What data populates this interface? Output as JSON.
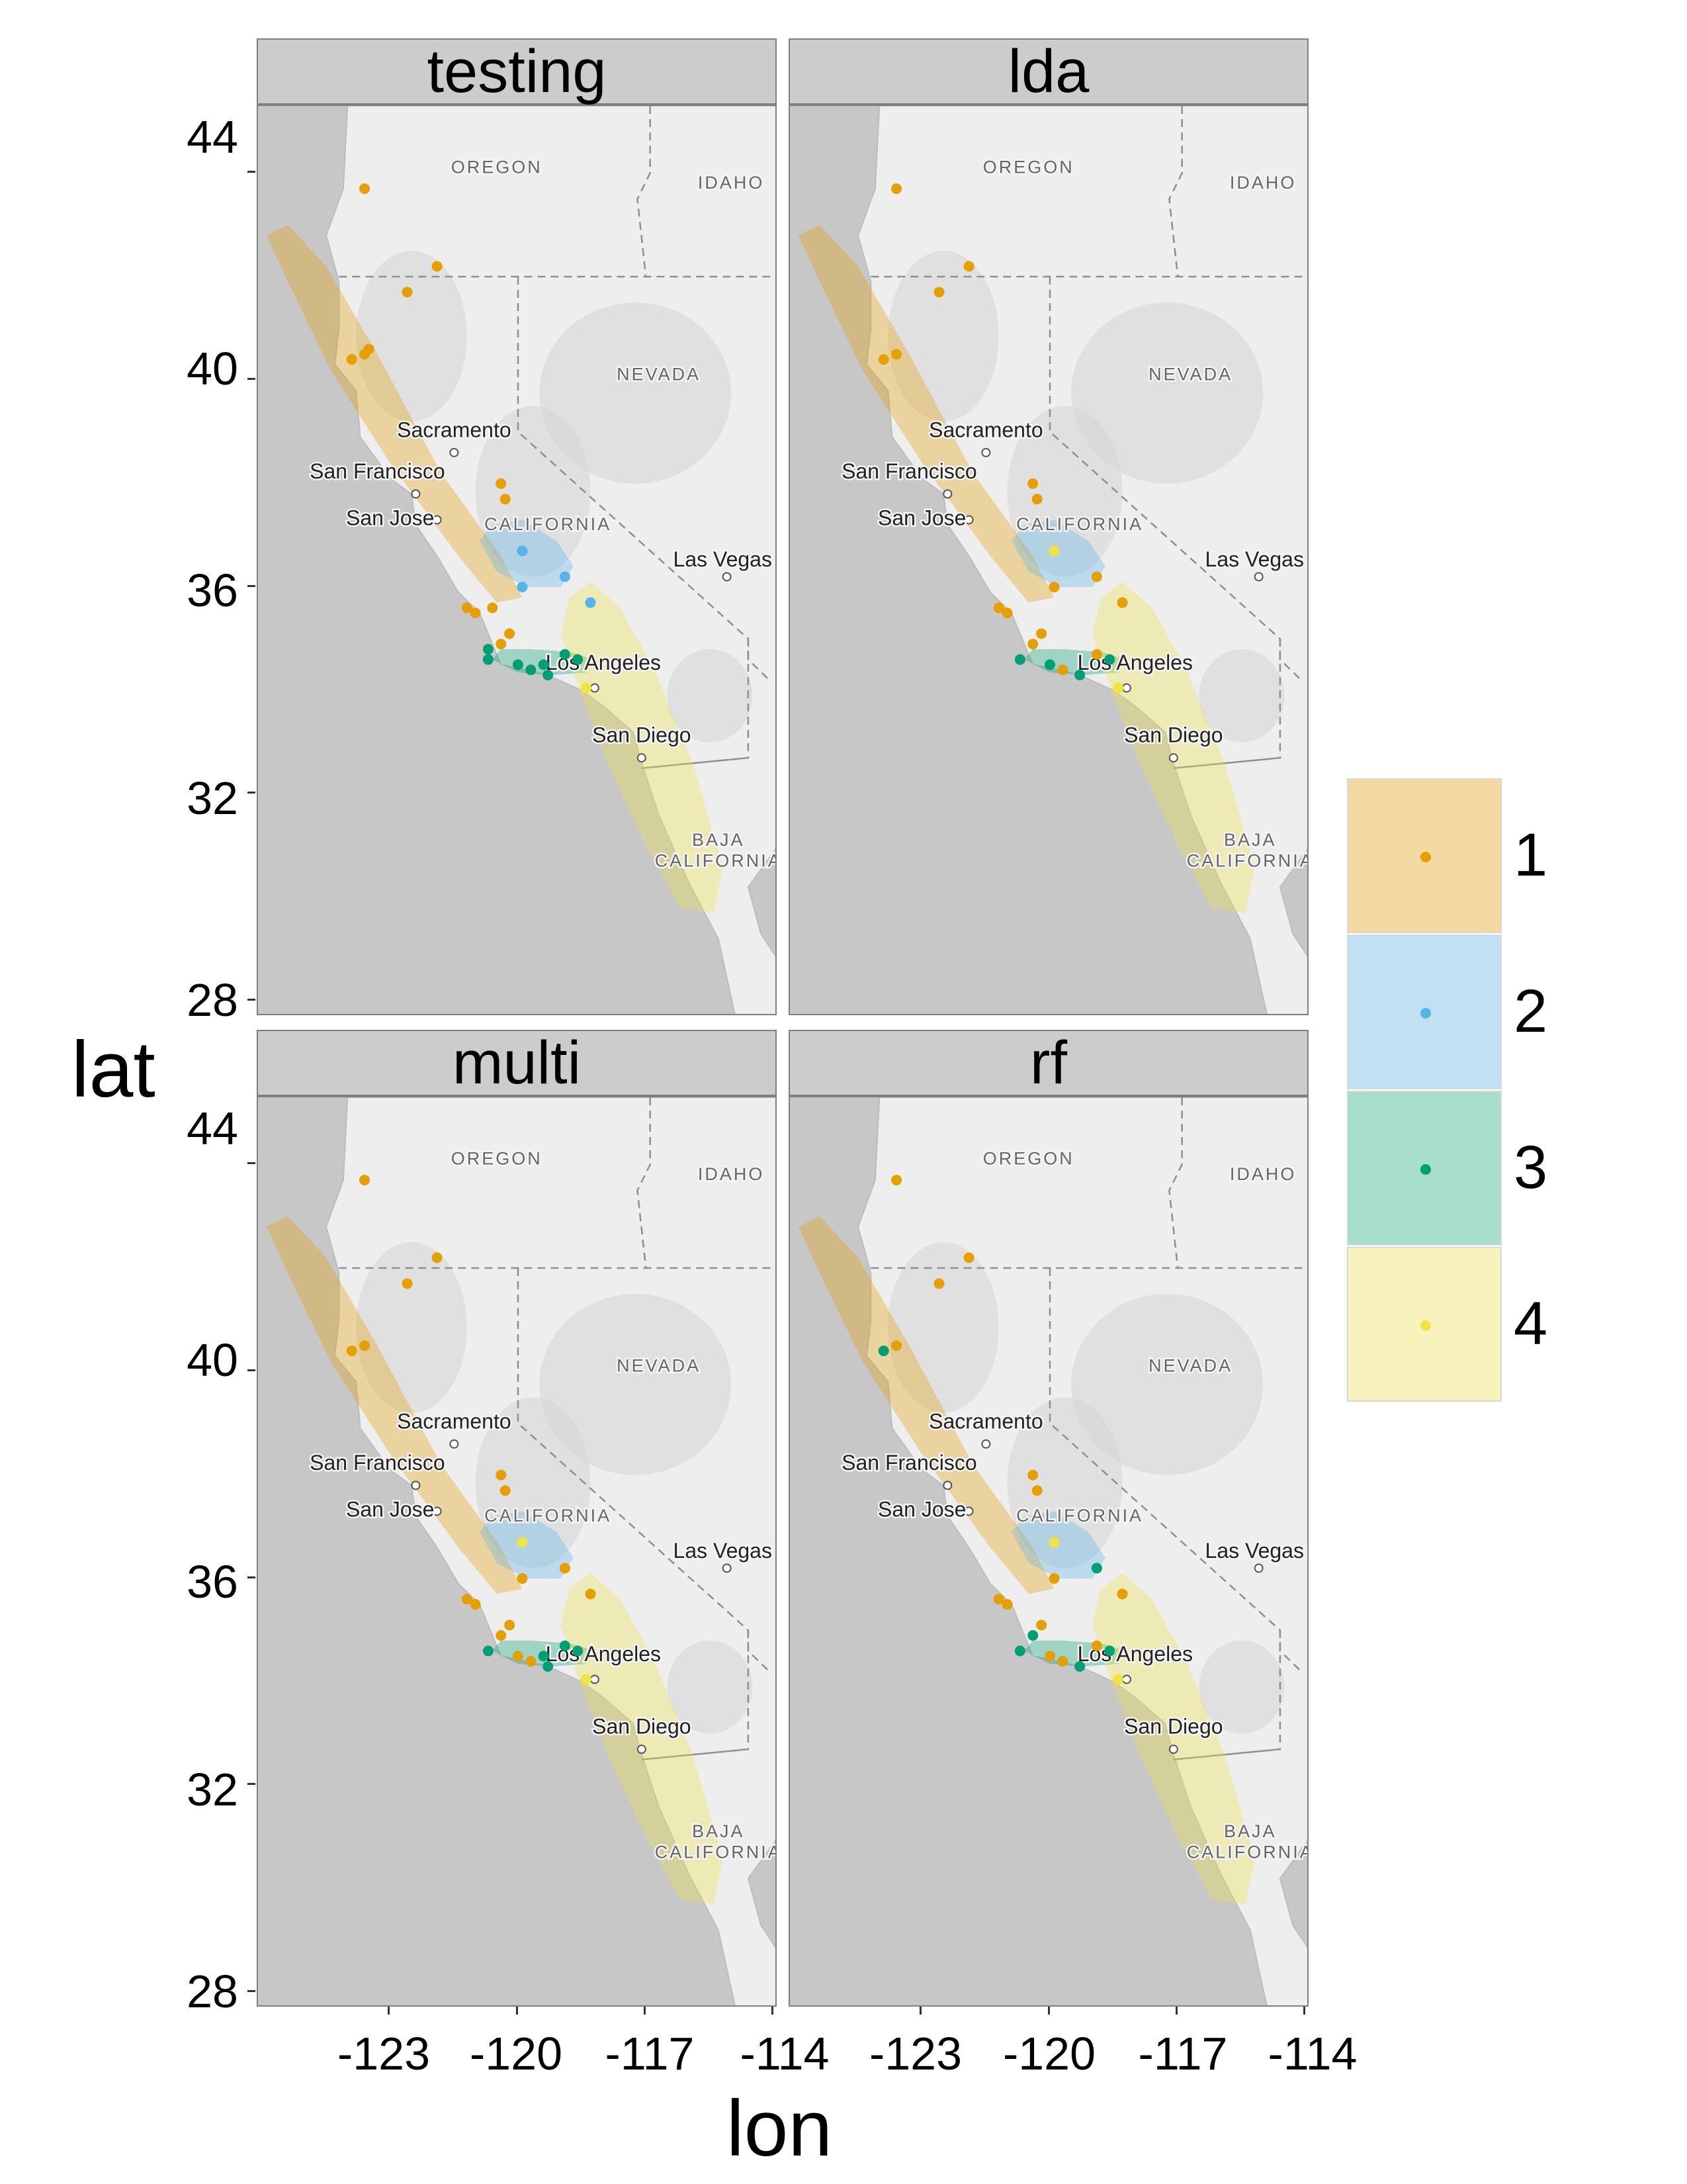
{
  "axes": {
    "xlabel": "lon",
    "ylabel": "lat",
    "x_ticks": [
      "-123",
      "-120",
      "-117",
      "-114"
    ],
    "y_ticks": [
      "28",
      "32",
      "36",
      "40",
      "44"
    ]
  },
  "legend": {
    "items": [
      {
        "label": "1",
        "color": "#E69F00",
        "fill": "#f3d9a2"
      },
      {
        "label": "2",
        "color": "#56B4E9",
        "fill": "#c1e1f3"
      },
      {
        "label": "3",
        "color": "#009E73",
        "fill": "#a6ddcb"
      },
      {
        "label": "4",
        "color": "#F0E442",
        "fill": "#f8f3bc"
      }
    ]
  },
  "map_labels": {
    "oregon": "OREGON",
    "idaho": "IDAHO",
    "nevada": "NEVADA",
    "california": "CALIFORNIA",
    "baja_line1": "BAJA",
    "baja_line2": "CALIFORNIA",
    "sacramento": "Sacramento",
    "san_francisco": "San Francisco",
    "san_jose": "San Jose",
    "las_vegas": "Las Vegas",
    "los_angeles": "Los Angeles",
    "san_diego": "San Diego"
  },
  "chart_data": {
    "type": "scatter",
    "xlim": [
      -126.1,
      -113.9
    ],
    "ylim": [
      27.7,
      45.3
    ],
    "facets": [
      "testing",
      "lda",
      "multi",
      "rf"
    ],
    "ellipses": [
      {
        "class": "1",
        "path": [
          [
            -125.9,
            42.8
          ],
          [
            -125.4,
            43.0
          ],
          [
            -124.5,
            42.2
          ],
          [
            -123.3,
            40.5
          ],
          [
            -121.8,
            38.2
          ],
          [
            -120.4,
            36.6
          ],
          [
            -119.9,
            35.8
          ],
          [
            -120.5,
            35.7
          ],
          [
            -121.4,
            36.6
          ],
          [
            -123.0,
            38.4
          ],
          [
            -124.4,
            40.2
          ],
          [
            -125.4,
            41.9
          ],
          [
            -125.9,
            42.8
          ]
        ]
      },
      {
        "class": "2",
        "path": [
          [
            -120.9,
            36.9
          ],
          [
            -120.6,
            37.2
          ],
          [
            -119.9,
            37.3
          ],
          [
            -119.1,
            36.9
          ],
          [
            -118.7,
            36.4
          ],
          [
            -119.0,
            36.0
          ],
          [
            -119.8,
            36.0
          ],
          [
            -120.5,
            36.3
          ],
          [
            -120.9,
            36.9
          ]
        ]
      },
      {
        "class": "3",
        "path": [
          [
            -120.6,
            34.6
          ],
          [
            -120.4,
            34.8
          ],
          [
            -119.7,
            34.8
          ],
          [
            -118.8,
            34.75
          ],
          [
            -118.2,
            34.6
          ],
          [
            -118.4,
            34.35
          ],
          [
            -119.2,
            34.3
          ],
          [
            -120.0,
            34.35
          ],
          [
            -120.6,
            34.6
          ]
        ]
      },
      {
        "class": "4",
        "path": [
          [
            -118.8,
            35.8
          ],
          [
            -118.3,
            36.1
          ],
          [
            -117.6,
            35.6
          ],
          [
            -116.8,
            34.4
          ],
          [
            -115.9,
            32.6
          ],
          [
            -115.2,
            30.6
          ],
          [
            -115.4,
            29.7
          ],
          [
            -116.2,
            29.8
          ],
          [
            -117.0,
            31.0
          ],
          [
            -117.9,
            32.6
          ],
          [
            -118.6,
            34.1
          ],
          [
            -119.0,
            35.1
          ],
          [
            -118.8,
            35.8
          ]
        ]
      }
    ],
    "series": [
      {
        "facet": "testing",
        "points": [
          {
            "lon": -123.6,
            "lat": 43.7,
            "class": "1"
          },
          {
            "lon": -121.9,
            "lat": 42.2,
            "class": "1"
          },
          {
            "lon": -122.6,
            "lat": 41.7,
            "class": "1"
          },
          {
            "lon": -123.9,
            "lat": 40.4,
            "class": "1"
          },
          {
            "lon": -123.6,
            "lat": 40.5,
            "class": "1"
          },
          {
            "lon": -123.5,
            "lat": 40.6,
            "class": "1"
          },
          {
            "lon": -120.4,
            "lat": 38.0,
            "class": "1"
          },
          {
            "lon": -120.3,
            "lat": 37.7,
            "class": "1"
          },
          {
            "lon": -119.9,
            "lat": 36.7,
            "class": "2"
          },
          {
            "lon": -118.9,
            "lat": 36.2,
            "class": "2"
          },
          {
            "lon": -119.9,
            "lat": 36.0,
            "class": "2"
          },
          {
            "lon": -118.3,
            "lat": 35.7,
            "class": "2"
          },
          {
            "lon": -121.2,
            "lat": 35.6,
            "class": "1"
          },
          {
            "lon": -121.0,
            "lat": 35.5,
            "class": "1"
          },
          {
            "lon": -120.6,
            "lat": 35.6,
            "class": "1"
          },
          {
            "lon": -120.2,
            "lat": 35.1,
            "class": "1"
          },
          {
            "lon": -120.4,
            "lat": 34.9,
            "class": "1"
          },
          {
            "lon": -120.7,
            "lat": 34.8,
            "class": "3"
          },
          {
            "lon": -120.7,
            "lat": 34.6,
            "class": "3"
          },
          {
            "lon": -120.0,
            "lat": 34.5,
            "class": "3"
          },
          {
            "lon": -119.7,
            "lat": 34.4,
            "class": "3"
          },
          {
            "lon": -119.4,
            "lat": 34.5,
            "class": "3"
          },
          {
            "lon": -119.3,
            "lat": 34.3,
            "class": "3"
          },
          {
            "lon": -118.9,
            "lat": 34.7,
            "class": "3"
          },
          {
            "lon": -118.6,
            "lat": 34.6,
            "class": "3"
          },
          {
            "lon": -118.4,
            "lat": 34.05,
            "class": "4"
          }
        ]
      },
      {
        "facet": "lda",
        "points": [
          {
            "lon": -123.6,
            "lat": 43.7,
            "class": "1"
          },
          {
            "lon": -121.9,
            "lat": 42.2,
            "class": "1"
          },
          {
            "lon": -122.6,
            "lat": 41.7,
            "class": "1"
          },
          {
            "lon": -123.9,
            "lat": 40.4,
            "class": "1"
          },
          {
            "lon": -123.6,
            "lat": 40.5,
            "class": "1"
          },
          {
            "lon": -120.4,
            "lat": 38.0,
            "class": "1"
          },
          {
            "lon": -120.3,
            "lat": 37.7,
            "class": "1"
          },
          {
            "lon": -119.9,
            "lat": 36.7,
            "class": "4"
          },
          {
            "lon": -118.9,
            "lat": 36.2,
            "class": "1"
          },
          {
            "lon": -119.9,
            "lat": 36.0,
            "class": "1"
          },
          {
            "lon": -118.3,
            "lat": 35.7,
            "class": "1"
          },
          {
            "lon": -121.2,
            "lat": 35.6,
            "class": "1"
          },
          {
            "lon": -121.0,
            "lat": 35.5,
            "class": "1"
          },
          {
            "lon": -120.2,
            "lat": 35.1,
            "class": "1"
          },
          {
            "lon": -120.4,
            "lat": 34.9,
            "class": "1"
          },
          {
            "lon": -120.7,
            "lat": 34.6,
            "class": "3"
          },
          {
            "lon": -120.0,
            "lat": 34.5,
            "class": "3"
          },
          {
            "lon": -119.7,
            "lat": 34.4,
            "class": "1"
          },
          {
            "lon": -119.3,
            "lat": 34.3,
            "class": "3"
          },
          {
            "lon": -118.9,
            "lat": 34.7,
            "class": "1"
          },
          {
            "lon": -118.6,
            "lat": 34.6,
            "class": "3"
          },
          {
            "lon": -118.4,
            "lat": 34.05,
            "class": "4"
          }
        ]
      },
      {
        "facet": "multi",
        "points": [
          {
            "lon": -123.6,
            "lat": 43.7,
            "class": "1"
          },
          {
            "lon": -121.9,
            "lat": 42.2,
            "class": "1"
          },
          {
            "lon": -122.6,
            "lat": 41.7,
            "class": "1"
          },
          {
            "lon": -123.9,
            "lat": 40.4,
            "class": "1"
          },
          {
            "lon": -123.6,
            "lat": 40.5,
            "class": "1"
          },
          {
            "lon": -120.4,
            "lat": 38.0,
            "class": "1"
          },
          {
            "lon": -120.3,
            "lat": 37.7,
            "class": "1"
          },
          {
            "lon": -119.9,
            "lat": 36.7,
            "class": "4"
          },
          {
            "lon": -118.9,
            "lat": 36.2,
            "class": "1"
          },
          {
            "lon": -119.9,
            "lat": 36.0,
            "class": "1"
          },
          {
            "lon": -118.3,
            "lat": 35.7,
            "class": "1"
          },
          {
            "lon": -121.2,
            "lat": 35.6,
            "class": "1"
          },
          {
            "lon": -121.0,
            "lat": 35.5,
            "class": "1"
          },
          {
            "lon": -120.2,
            "lat": 35.1,
            "class": "1"
          },
          {
            "lon": -120.4,
            "lat": 34.9,
            "class": "1"
          },
          {
            "lon": -120.7,
            "lat": 34.6,
            "class": "3"
          },
          {
            "lon": -120.0,
            "lat": 34.5,
            "class": "1"
          },
          {
            "lon": -119.7,
            "lat": 34.4,
            "class": "1"
          },
          {
            "lon": -119.4,
            "lat": 34.5,
            "class": "3"
          },
          {
            "lon": -119.3,
            "lat": 34.3,
            "class": "3"
          },
          {
            "lon": -118.9,
            "lat": 34.7,
            "class": "3"
          },
          {
            "lon": -118.6,
            "lat": 34.6,
            "class": "3"
          },
          {
            "lon": -118.4,
            "lat": 34.05,
            "class": "4"
          }
        ]
      },
      {
        "facet": "rf",
        "points": [
          {
            "lon": -123.6,
            "lat": 43.7,
            "class": "1"
          },
          {
            "lon": -121.9,
            "lat": 42.2,
            "class": "1"
          },
          {
            "lon": -122.6,
            "lat": 41.7,
            "class": "1"
          },
          {
            "lon": -123.9,
            "lat": 40.4,
            "class": "3"
          },
          {
            "lon": -123.6,
            "lat": 40.5,
            "class": "1"
          },
          {
            "lon": -120.4,
            "lat": 38.0,
            "class": "1"
          },
          {
            "lon": -120.3,
            "lat": 37.7,
            "class": "1"
          },
          {
            "lon": -119.9,
            "lat": 36.7,
            "class": "4"
          },
          {
            "lon": -118.9,
            "lat": 36.2,
            "class": "3"
          },
          {
            "lon": -119.9,
            "lat": 36.0,
            "class": "1"
          },
          {
            "lon": -118.3,
            "lat": 35.7,
            "class": "1"
          },
          {
            "lon": -121.2,
            "lat": 35.6,
            "class": "1"
          },
          {
            "lon": -121.0,
            "lat": 35.5,
            "class": "1"
          },
          {
            "lon": -120.2,
            "lat": 35.1,
            "class": "1"
          },
          {
            "lon": -120.4,
            "lat": 34.9,
            "class": "3"
          },
          {
            "lon": -120.7,
            "lat": 34.6,
            "class": "3"
          },
          {
            "lon": -120.0,
            "lat": 34.5,
            "class": "1"
          },
          {
            "lon": -119.7,
            "lat": 34.4,
            "class": "1"
          },
          {
            "lon": -119.3,
            "lat": 34.3,
            "class": "3"
          },
          {
            "lon": -118.9,
            "lat": 34.7,
            "class": "1"
          },
          {
            "lon": -118.6,
            "lat": 34.6,
            "class": "3"
          },
          {
            "lon": -118.4,
            "lat": 34.05,
            "class": "4"
          }
        ]
      }
    ]
  }
}
